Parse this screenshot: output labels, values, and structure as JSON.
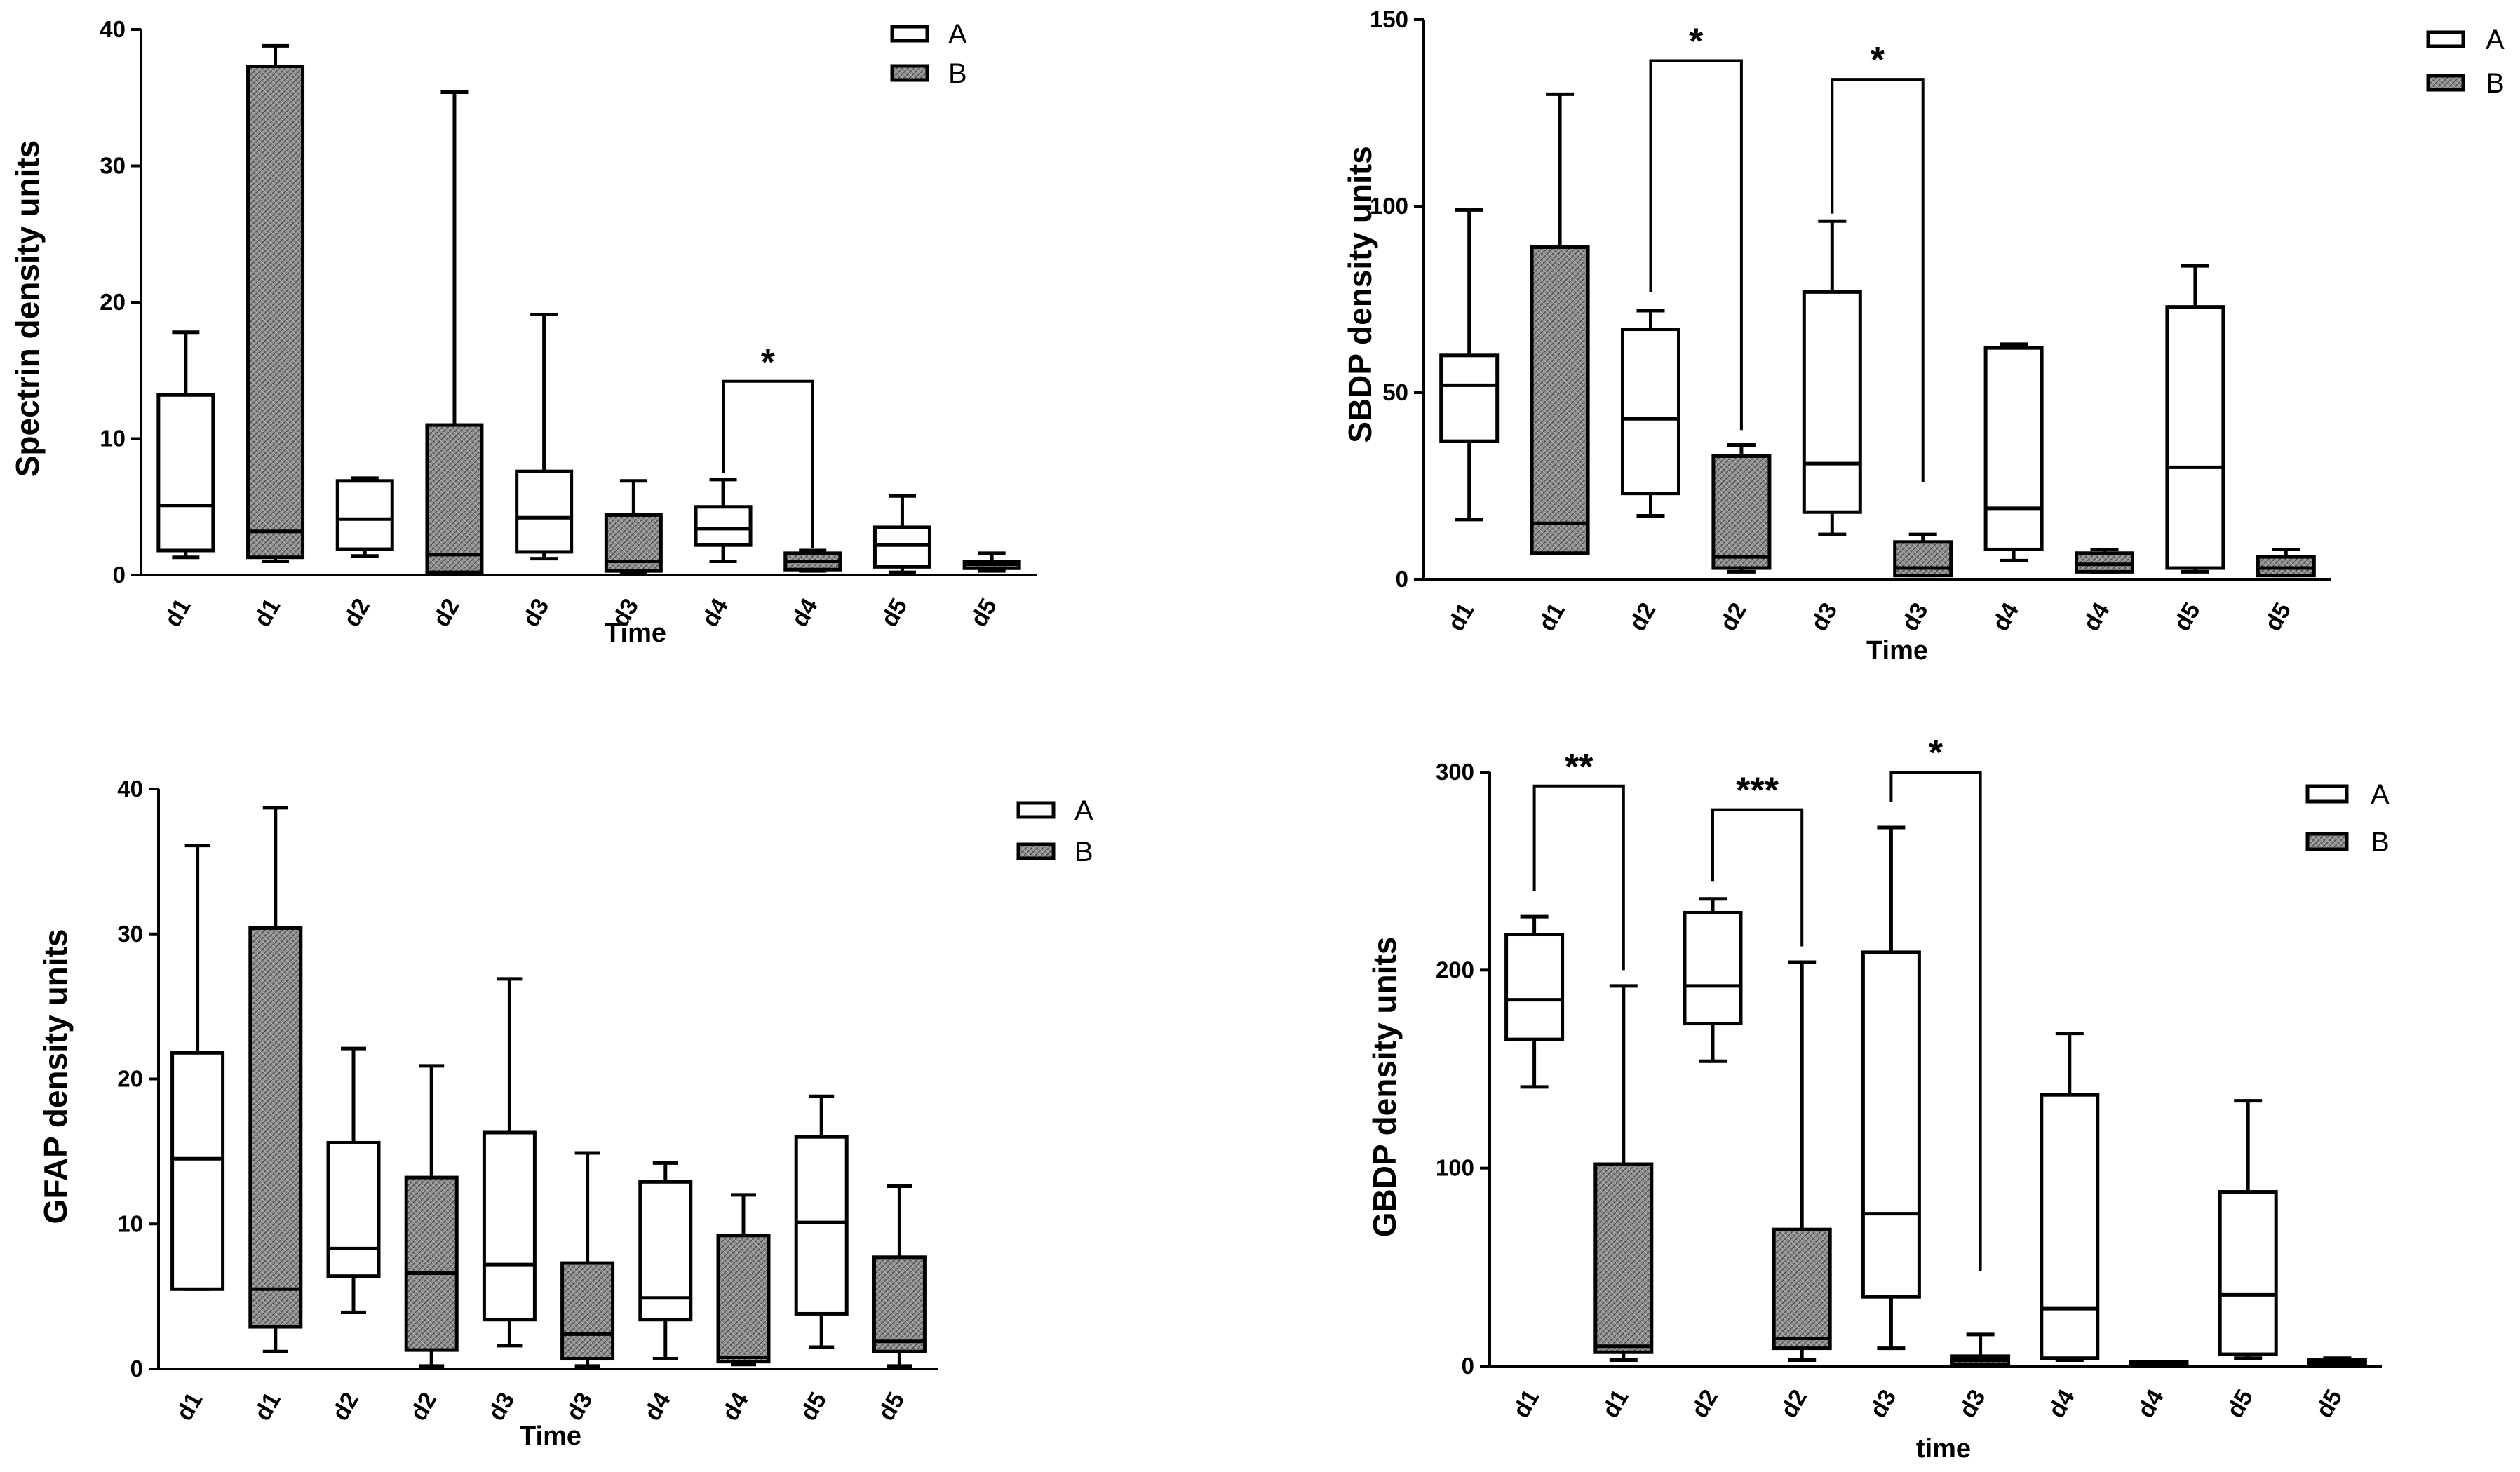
{
  "figure": {
    "background": "#ffffff",
    "ink": "#000000",
    "fill_b": "#8c8c8c"
  },
  "chart_data": [
    {
      "id": "spectrin",
      "type": "boxplot",
      "ylabel": "Spectrin density units",
      "xlabel": "Time",
      "ylim": [
        0,
        40
      ],
      "yticks": [
        0,
        10,
        20,
        30,
        40
      ],
      "legend": [
        "A",
        "B"
      ],
      "legend_position": "top-right",
      "boxes": [
        {
          "label": "d1",
          "group": "A",
          "min": 1.3,
          "q1": 1.8,
          "median": 5.1,
          "q3": 13.2,
          "max": 17.8
        },
        {
          "label": "d1",
          "group": "B",
          "min": 1.0,
          "q1": 1.3,
          "median": 3.2,
          "q3": 37.3,
          "max": 38.8
        },
        {
          "label": "d2",
          "group": "A",
          "min": 1.4,
          "q1": 1.9,
          "median": 4.1,
          "q3": 6.9,
          "max": 7.1
        },
        {
          "label": "d2",
          "group": "B",
          "min": 0.2,
          "q1": 0.2,
          "median": 1.5,
          "q3": 11.0,
          "max": 35.4
        },
        {
          "label": "d3",
          "group": "A",
          "min": 1.2,
          "q1": 1.7,
          "median": 4.2,
          "q3": 7.6,
          "max": 19.1
        },
        {
          "label": "d3",
          "group": "B",
          "min": 0.1,
          "q1": 0.3,
          "median": 1.0,
          "q3": 4.4,
          "max": 6.9
        },
        {
          "label": "d4",
          "group": "A",
          "min": 1.0,
          "q1": 2.2,
          "median": 3.4,
          "q3": 5.0,
          "max": 7.0
        },
        {
          "label": "d4",
          "group": "B",
          "min": 0.3,
          "q1": 0.4,
          "median": 1.0,
          "q3": 1.6,
          "max": 1.8
        },
        {
          "label": "d5",
          "group": "A",
          "min": 0.2,
          "q1": 0.6,
          "median": 2.2,
          "q3": 3.5,
          "max": 5.8
        },
        {
          "label": "d5",
          "group": "B",
          "min": 0.3,
          "q1": 0.5,
          "median": 0.8,
          "q3": 1.0,
          "max": 1.6
        }
      ],
      "annotations": [
        {
          "from": 6,
          "to": 7,
          "label": "*",
          "y": 14.2,
          "left_end": 7.5,
          "right_end": 2.0
        }
      ]
    },
    {
      "id": "sbdp",
      "type": "boxplot",
      "ylabel": "SBDP  density units",
      "xlabel": "Time",
      "ylim": [
        0,
        150
      ],
      "yticks": [
        0,
        50,
        100,
        150
      ],
      "legend": [
        "A",
        "B"
      ],
      "legend_position": "top-right",
      "boxes": [
        {
          "label": "d1",
          "group": "A",
          "min": 16,
          "q1": 37,
          "median": 52,
          "q3": 60,
          "max": 99
        },
        {
          "label": "d1",
          "group": "B",
          "min": 7,
          "q1": 7,
          "median": 15,
          "q3": 89,
          "max": 130
        },
        {
          "label": "d2",
          "group": "A",
          "min": 17,
          "q1": 23,
          "median": 43,
          "q3": 67,
          "max": 72
        },
        {
          "label": "d2",
          "group": "B",
          "min": 2,
          "q1": 3,
          "median": 6,
          "q3": 33,
          "max": 36
        },
        {
          "label": "d3",
          "group": "A",
          "min": 12,
          "q1": 18,
          "median": 31,
          "q3": 77,
          "max": 96
        },
        {
          "label": "d3",
          "group": "B",
          "min": 1,
          "q1": 1,
          "median": 3,
          "q3": 10,
          "max": 12
        },
        {
          "label": "d4",
          "group": "A",
          "min": 5,
          "q1": 8,
          "median": 19,
          "q3": 62,
          "max": 63
        },
        {
          "label": "d4",
          "group": "B",
          "min": 2,
          "q1": 2,
          "median": 4,
          "q3": 7,
          "max": 8
        },
        {
          "label": "d5",
          "group": "A",
          "min": 2,
          "q1": 3,
          "median": 30,
          "q3": 73,
          "max": 84
        },
        {
          "label": "d5",
          "group": "B",
          "min": 1,
          "q1": 1,
          "median": 3,
          "q3": 6,
          "max": 8
        }
      ],
      "annotations": [
        {
          "from": 2,
          "to": 3,
          "label": "*",
          "y": 139,
          "left_end": 77,
          "right_end": 40
        },
        {
          "from": 4,
          "to": 5,
          "label": "*",
          "y": 134,
          "left_end": 98,
          "right_end": 26
        }
      ]
    },
    {
      "id": "gfap",
      "type": "boxplot",
      "ylabel": "GFAP density units",
      "xlabel": "Time",
      "ylim": [
        0,
        40
      ],
      "yticks": [
        0,
        10,
        20,
        30,
        40
      ],
      "legend": [
        "A",
        "B"
      ],
      "legend_position": "top-right",
      "boxes": [
        {
          "label": "d1",
          "group": "A",
          "min": 5.5,
          "q1": 5.5,
          "median": 14.5,
          "q3": 21.8,
          "max": 36.1
        },
        {
          "label": "d1",
          "group": "B",
          "min": 1.2,
          "q1": 2.9,
          "median": 5.5,
          "q3": 30.4,
          "max": 38.7
        },
        {
          "label": "d2",
          "group": "A",
          "min": 3.9,
          "q1": 6.4,
          "median": 8.3,
          "q3": 15.6,
          "max": 22.1
        },
        {
          "label": "d2",
          "group": "B",
          "min": 0.2,
          "q1": 1.3,
          "median": 6.6,
          "q3": 13.2,
          "max": 20.9
        },
        {
          "label": "d3",
          "group": "A",
          "min": 1.6,
          "q1": 3.4,
          "median": 7.2,
          "q3": 16.3,
          "max": 26.9
        },
        {
          "label": "d3",
          "group": "B",
          "min": 0.2,
          "q1": 0.7,
          "median": 2.4,
          "q3": 7.3,
          "max": 14.9
        },
        {
          "label": "d4",
          "group": "A",
          "min": 0.7,
          "q1": 3.4,
          "median": 4.9,
          "q3": 12.9,
          "max": 14.2
        },
        {
          "label": "d4",
          "group": "B",
          "min": 0.3,
          "q1": 0.5,
          "median": 0.8,
          "q3": 9.2,
          "max": 12.0
        },
        {
          "label": "d5",
          "group": "A",
          "min": 1.5,
          "q1": 3.8,
          "median": 10.1,
          "q3": 16.0,
          "max": 18.8
        },
        {
          "label": "d5",
          "group": "B",
          "min": 0.2,
          "q1": 1.2,
          "median": 1.9,
          "q3": 7.7,
          "max": 12.6
        }
      ],
      "annotations": []
    },
    {
      "id": "gbdp",
      "type": "boxplot",
      "ylabel": "GBDP  density units",
      "xlabel": "time",
      "ylim": [
        0,
        300
      ],
      "yticks": [
        0,
        100,
        200,
        300
      ],
      "legend": [
        "A",
        "B"
      ],
      "legend_position": "top-right",
      "boxes": [
        {
          "label": "d1",
          "group": "A",
          "min": 141,
          "q1": 165,
          "median": 185,
          "q3": 218,
          "max": 227
        },
        {
          "label": "d1",
          "group": "B",
          "min": 3,
          "q1": 7,
          "median": 10,
          "q3": 102,
          "max": 192
        },
        {
          "label": "d2",
          "group": "A",
          "min": 154,
          "q1": 173,
          "median": 192,
          "q3": 229,
          "max": 236
        },
        {
          "label": "d2",
          "group": "B",
          "min": 3,
          "q1": 9,
          "median": 14,
          "q3": 69,
          "max": 204
        },
        {
          "label": "d3",
          "group": "A",
          "min": 9,
          "q1": 35,
          "median": 77,
          "q3": 209,
          "max": 272
        },
        {
          "label": "d3",
          "group": "B",
          "min": 1,
          "q1": 1,
          "median": 3,
          "q3": 5,
          "max": 16
        },
        {
          "label": "d4",
          "group": "A",
          "min": 3,
          "q1": 4,
          "median": 29,
          "q3": 137,
          "max": 168
        },
        {
          "label": "d4",
          "group": "B",
          "min": 1,
          "q1": 1,
          "median": 1,
          "q3": 2,
          "max": 2
        },
        {
          "label": "d5",
          "group": "A",
          "min": 4,
          "q1": 6,
          "median": 36,
          "q3": 88,
          "max": 134
        },
        {
          "label": "d5",
          "group": "B",
          "min": 1,
          "q1": 1,
          "median": 2,
          "q3": 3,
          "max": 4
        }
      ],
      "annotations": [
        {
          "from": 0,
          "to": 1,
          "label": "**",
          "y": 293,
          "left_end": 240,
          "right_end": 200
        },
        {
          "from": 2,
          "to": 3,
          "label": "***",
          "y": 281,
          "left_end": 245,
          "right_end": 212
        },
        {
          "from": 4,
          "to": 5,
          "label": "*",
          "y": 300,
          "left_end": 285,
          "right_end": 48
        }
      ]
    }
  ]
}
